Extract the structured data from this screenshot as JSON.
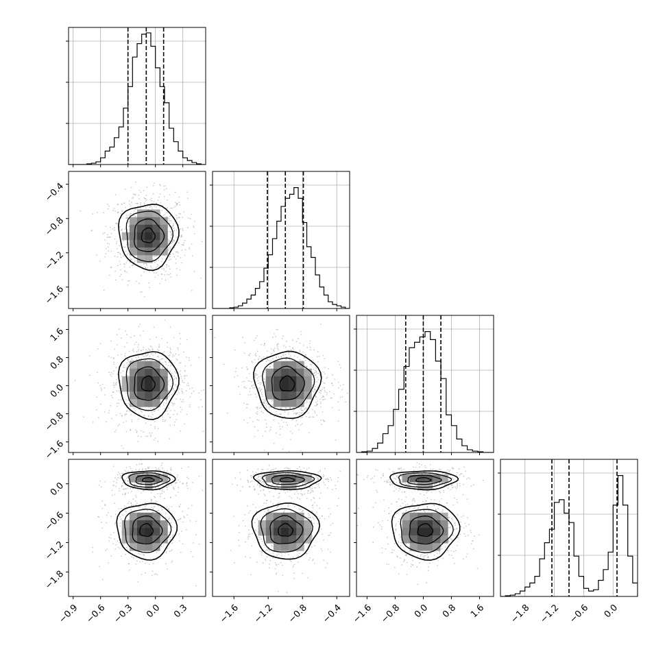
{
  "chart_data": {
    "type": "corner",
    "parameters": 4,
    "quantile_lines": [
      0.16,
      0.5,
      0.84
    ],
    "grid": true,
    "colors": {
      "frame": "#000000",
      "grid": "#b0b0b0",
      "scatter": "#a0a0a0",
      "contour": "#000000",
      "density": "#4a4a4a"
    },
    "axes": [
      {
        "range": [
          -0.95,
          0.55
        ],
        "ticks": [
          -0.9,
          -0.6,
          -0.3,
          0.0,
          0.3
        ],
        "tick_labels": [
          "−0.9",
          "−0.6",
          "−0.3",
          "0.0",
          "0.3"
        ]
      },
      {
        "range": [
          -1.85,
          -0.25
        ],
        "ticks": [
          -1.6,
          -1.2,
          -0.8,
          -0.4
        ],
        "tick_labels": [
          "−1.6",
          "−1.2",
          "−0.8",
          "−0.4"
        ]
      },
      {
        "range": [
          -1.9,
          2.0
        ],
        "ticks": [
          -1.6,
          -0.8,
          0.0,
          0.8,
          1.6
        ],
        "tick_labels": [
          "−1.6",
          "−0.8",
          "0.0",
          "0.8",
          "1.6"
        ]
      },
      {
        "range": [
          -2.3,
          0.5
        ],
        "ticks": [
          -1.8,
          -1.2,
          -0.6,
          0.0
        ],
        "tick_labels": [
          "−1.8",
          "−1.2",
          "−0.6",
          "0.0"
        ]
      }
    ],
    "histograms": [
      {
        "param": 0,
        "ymax": 1.0,
        "quantiles": [
          -0.3,
          -0.1,
          0.09
        ],
        "bin_edges": [
          -0.95,
          -0.9,
          -0.85,
          -0.8,
          -0.75,
          -0.7,
          -0.65,
          -0.6,
          -0.55,
          -0.5,
          -0.45,
          -0.4,
          -0.35,
          -0.3,
          -0.25,
          -0.2,
          -0.15,
          -0.1,
          -0.05,
          0.0,
          0.05,
          0.1,
          0.15,
          0.2,
          0.25,
          0.3,
          0.35,
          0.4,
          0.45,
          0.5,
          0.55
        ],
        "counts": [
          0,
          0,
          0,
          0,
          0.005,
          0.01,
          0.02,
          0.05,
          0.1,
          0.13,
          0.2,
          0.28,
          0.42,
          0.58,
          0.8,
          0.9,
          0.97,
          0.98,
          0.88,
          0.72,
          0.58,
          0.46,
          0.27,
          0.17,
          0.1,
          0.05,
          0.03,
          0.015,
          0.005,
          0
        ]
      },
      {
        "param": 1,
        "ymax": 1.0,
        "quantiles": [
          -1.21,
          -1.0,
          -0.79
        ],
        "bin_edges": [
          -1.85,
          -1.8,
          -1.75,
          -1.7,
          -1.65,
          -1.6,
          -1.55,
          -1.5,
          -1.45,
          -1.4,
          -1.35,
          -1.3,
          -1.25,
          -1.2,
          -1.15,
          -1.1,
          -1.05,
          -1.0,
          -0.95,
          -0.9,
          -0.85,
          -0.8,
          -0.75,
          -0.7,
          -0.65,
          -0.6,
          -0.55,
          -0.5,
          -0.45,
          -0.4,
          -0.35,
          -0.3,
          -0.25
        ],
        "counts": [
          0,
          0,
          0,
          0,
          0.005,
          0.01,
          0.02,
          0.04,
          0.07,
          0.1,
          0.15,
          0.2,
          0.3,
          0.4,
          0.52,
          0.65,
          0.76,
          0.82,
          0.85,
          0.9,
          0.82,
          0.64,
          0.46,
          0.38,
          0.25,
          0.16,
          0.1,
          0.05,
          0.03,
          0.02,
          0.01,
          0
        ]
      },
      {
        "param": 2,
        "ymax": 1.0,
        "quantiles": [
          -0.5,
          0.0,
          0.5
        ],
        "bin_edges": [
          -1.9,
          -1.75,
          -1.6,
          -1.45,
          -1.3,
          -1.15,
          -1.0,
          -0.85,
          -0.7,
          -0.55,
          -0.4,
          -0.25,
          -0.1,
          0.05,
          0.2,
          0.35,
          0.5,
          0.65,
          0.8,
          0.95,
          1.1,
          1.25,
          1.4,
          1.55,
          1.7,
          1.85,
          2.0
        ],
        "counts": [
          0,
          0.005,
          0.01,
          0.03,
          0.07,
          0.14,
          0.2,
          0.32,
          0.47,
          0.64,
          0.78,
          0.82,
          0.86,
          0.9,
          0.84,
          0.68,
          0.55,
          0.28,
          0.2,
          0.1,
          0.05,
          0.02,
          0.01,
          0.005,
          0,
          0
        ]
      },
      {
        "param": 3,
        "ymax": 1.0,
        "quantiles": [
          -1.25,
          -0.9,
          0.08
        ],
        "bin_edges": [
          -2.3,
          -2.2,
          -2.1,
          -2.0,
          -1.9,
          -1.8,
          -1.7,
          -1.6,
          -1.5,
          -1.4,
          -1.3,
          -1.2,
          -1.1,
          -1.0,
          -0.9,
          -0.8,
          -0.7,
          -0.6,
          -0.5,
          -0.4,
          -0.3,
          -0.2,
          -0.1,
          0.0,
          0.1,
          0.2,
          0.3,
          0.4,
          0.5
        ],
        "counts": [
          0,
          0.005,
          0.01,
          0.02,
          0.04,
          0.07,
          0.1,
          0.15,
          0.28,
          0.4,
          0.5,
          0.7,
          0.72,
          0.62,
          0.55,
          0.3,
          0.15,
          0.06,
          0.04,
          0.05,
          0.12,
          0.2,
          0.33,
          0.68,
          0.9,
          0.68,
          0.3,
          0.1,
          0
        ]
      }
    ],
    "pairs": [
      {
        "x_param": 0,
        "y_param": 1,
        "modes": [
          {
            "cx": -0.08,
            "cy": -1.0,
            "sx": 0.17,
            "sy": 0.2,
            "weight": 1.0
          }
        ]
      },
      {
        "x_param": 0,
        "y_param": 2,
        "modes": [
          {
            "cx": -0.08,
            "cy": 0.05,
            "sx": 0.17,
            "sy": 0.5,
            "weight": 1.0
          }
        ]
      },
      {
        "x_param": 1,
        "y_param": 2,
        "modes": [
          {
            "cx": -0.98,
            "cy": 0.05,
            "sx": 0.2,
            "sy": 0.5,
            "weight": 1.0
          }
        ]
      },
      {
        "x_param": 0,
        "y_param": 3,
        "modes": [
          {
            "cx": -0.08,
            "cy": 0.08,
            "sx": 0.15,
            "sy": 0.1,
            "weight": 0.45
          },
          {
            "cx": -0.1,
            "cy": -0.95,
            "sx": 0.17,
            "sy": 0.3,
            "weight": 0.55
          }
        ]
      },
      {
        "x_param": 1,
        "y_param": 3,
        "modes": [
          {
            "cx": -0.98,
            "cy": 0.08,
            "sx": 0.2,
            "sy": 0.1,
            "weight": 0.45
          },
          {
            "cx": -1.0,
            "cy": -0.95,
            "sx": 0.2,
            "sy": 0.3,
            "weight": 0.55
          }
        ]
      },
      {
        "x_param": 2,
        "y_param": 3,
        "modes": [
          {
            "cx": 0.0,
            "cy": 0.08,
            "sx": 0.5,
            "sy": 0.1,
            "weight": 0.45
          },
          {
            "cx": 0.05,
            "cy": -0.95,
            "sx": 0.5,
            "sy": 0.3,
            "weight": 0.55
          }
        ]
      }
    ],
    "contour_levels": [
      0.08,
      0.32,
      0.6,
      0.87
    ],
    "scatter_points_per_mode": 450
  }
}
